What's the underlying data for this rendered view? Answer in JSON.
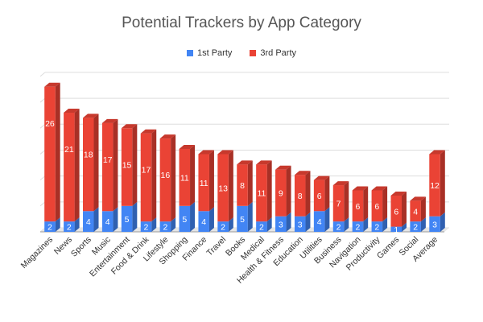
{
  "chart_data": {
    "type": "bar",
    "stacked": true,
    "title": "Potential Trackers by App Category",
    "xlabel": "",
    "ylabel": "",
    "ylim": [
      0,
      32
    ],
    "grid": true,
    "legend_position": "top",
    "y_tick_labels_shown": false,
    "categories": [
      "Magazines",
      "News",
      "Sports",
      "Music",
      "Entertainment",
      "Food & Drink",
      "Lifestyle",
      "Shopping",
      "Finance",
      "Travel",
      "Books",
      "Medical",
      "Health & Fitness",
      "Education",
      "Utilities",
      "Business",
      "Navigation",
      "Productivity",
      "Games",
      "Social",
      "Average"
    ],
    "series": [
      {
        "name": "1st Party",
        "color": "#4285f4",
        "values": [
          2,
          2,
          4,
          4,
          5,
          2,
          2,
          5,
          4,
          2,
          5,
          2,
          3,
          3,
          4,
          2,
          2,
          2,
          1,
          2,
          3
        ]
      },
      {
        "name": "3rd Party",
        "color": "#ea4335",
        "values": [
          26,
          21,
          18,
          17,
          15,
          17,
          16,
          11,
          11,
          13,
          8,
          11,
          9,
          8,
          6,
          7,
          6,
          6,
          6,
          4,
          12
        ]
      }
    ]
  }
}
